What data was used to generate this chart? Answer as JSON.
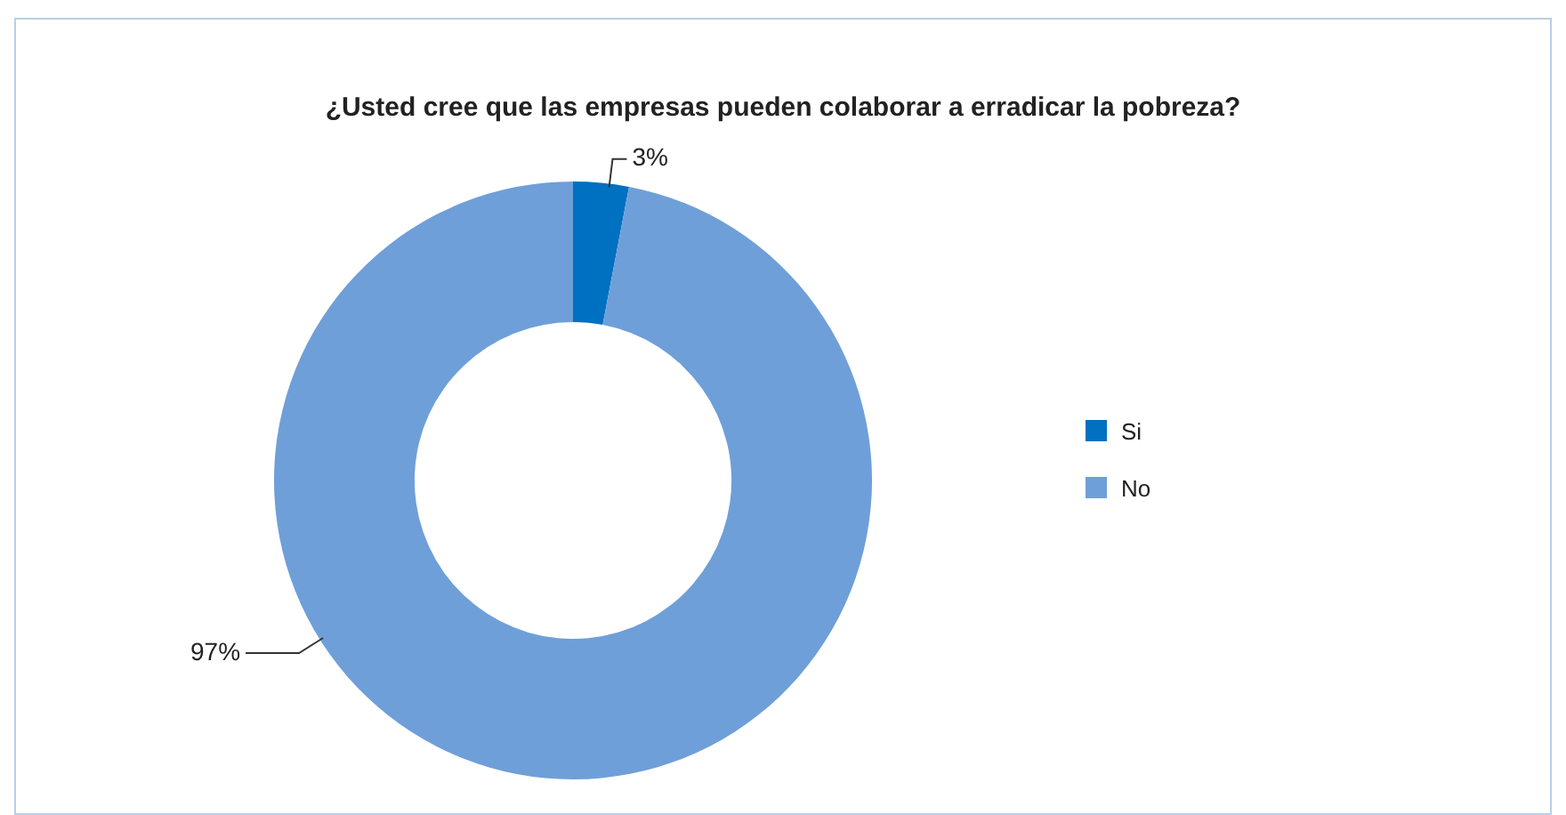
{
  "chart_data": {
    "type": "donut",
    "title": "¿Usted cree que las empresas pueden colaborar a erradicar la pobreza?",
    "categories": [
      "Si",
      "No"
    ],
    "values": [
      3,
      97
    ],
    "colors": [
      "#0070c0",
      "#6f9fd8"
    ],
    "value_labels": [
      "3%",
      "97%"
    ],
    "legend": "right"
  }
}
